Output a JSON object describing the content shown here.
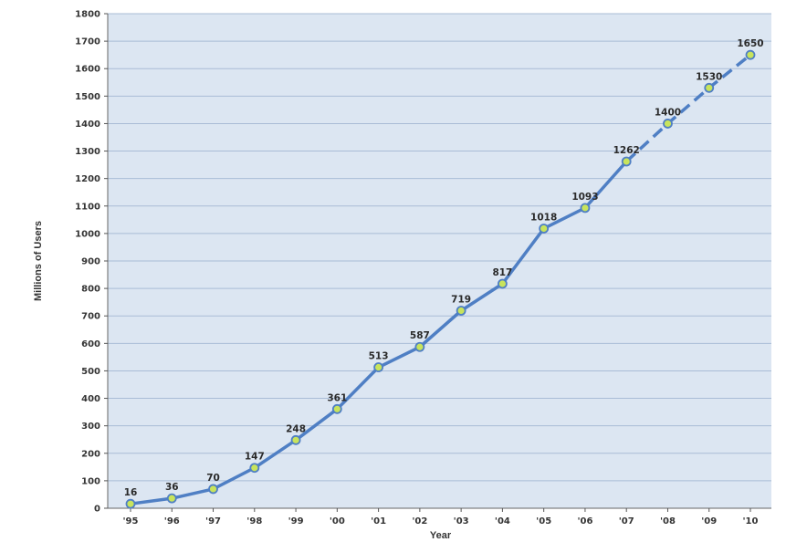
{
  "chart_data": {
    "type": "line",
    "title": "",
    "xlabel": "Year",
    "ylabel": "Millions of Users",
    "categories": [
      "'95",
      "'96",
      "'97",
      "'98",
      "'99",
      "'00",
      "'01",
      "'02",
      "'03",
      "'04",
      "'05",
      "'06",
      "'07",
      "'08",
      "'09",
      "'10"
    ],
    "series": [
      {
        "values": [
          16,
          36,
          70,
          147,
          248,
          361,
          513,
          587,
          719,
          817,
          1018,
          1093,
          1262,
          1400,
          1530,
          1650
        ],
        "line_style_note": "solid through '07, dashed from '07 to '10"
      }
    ],
    "data_labels": [
      "16",
      "36",
      "70",
      "147",
      "248",
      "361",
      "513",
      "587",
      "719",
      "817",
      "1018",
      "1093",
      "1262",
      "1400",
      "1530",
      "1650"
    ],
    "yticks": [
      "0",
      "100",
      "200",
      "300",
      "400",
      "500",
      "600",
      "700",
      "800",
      "900",
      "1000",
      "1100",
      "1200",
      "1300",
      "1400",
      "1500",
      "1600",
      "1700",
      "1800"
    ],
    "ylim": [
      0,
      1800
    ],
    "grid": true,
    "legend": "none",
    "colors": {
      "plot_background": "#dce6f2",
      "gridline": "#a9bcd6",
      "line": "#4f7fc4",
      "marker_fill": "#c8e45c",
      "marker_stroke": "#4f7fc4"
    }
  }
}
